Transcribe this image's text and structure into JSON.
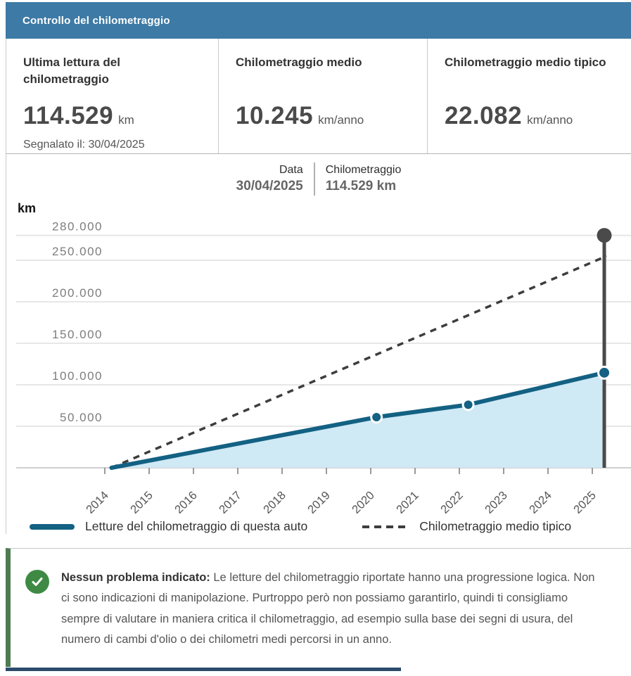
{
  "header": {
    "title": "Controllo del chilometraggio"
  },
  "stats": [
    {
      "title": "Ultima lettura del chilometraggio",
      "value": "114.529",
      "unit": "km",
      "note": "Segnalato il: 30/04/2025"
    },
    {
      "title": "Chilometraggio medio",
      "value": "10.245",
      "unit": "km/anno",
      "note": ""
    },
    {
      "title": "Chilometraggio medio tipico",
      "value": "22.082",
      "unit": "km/anno",
      "note": ""
    }
  ],
  "tooltip": {
    "date_label": "Data",
    "date_value": "30/04/2025",
    "km_label": "Chilometraggio",
    "km_value": "114.529 km"
  },
  "chart_data": {
    "type": "line",
    "title": "",
    "xlabel": "",
    "ylabel": "km",
    "ylim": [
      0,
      280000
    ],
    "grid": true,
    "legend_position": "bottom",
    "x_ticks": [
      2014,
      2015,
      2016,
      2017,
      2018,
      2019,
      2020,
      2021,
      2022,
      2023,
      2024,
      2025
    ],
    "y_ticks": [
      {
        "value": 280000,
        "label": "280.000"
      },
      {
        "value": 250000,
        "label": "250.000"
      },
      {
        "value": 200000,
        "label": "200.000"
      },
      {
        "value": 150000,
        "label": "150.000"
      },
      {
        "value": 100000,
        "label": "100.000"
      },
      {
        "value": 50000,
        "label": "50.000"
      }
    ],
    "series": [
      {
        "name": "Letture del chilometraggio di questa auto",
        "style": "solid",
        "color": "#136183",
        "area_fill": "#cfe9f5",
        "points": [
          {
            "x": 2014.15,
            "y": 0
          },
          {
            "x": 2020.13,
            "y": 61000
          },
          {
            "x": 2022.2,
            "y": 76000
          },
          {
            "x": 2025.27,
            "y": 114529
          }
        ]
      },
      {
        "name": "Chilometraggio medio tipico",
        "style": "dashed",
        "color": "#3d3d3d",
        "points": [
          {
            "x": 2014.15,
            "y": 0
          },
          {
            "x": 2025.32,
            "y": 255000
          }
        ]
      }
    ],
    "marker": {
      "x": 2025.27,
      "top_value": 280000,
      "color": "#4a4a4a",
      "date": "30/04/2025",
      "value": 114529
    }
  },
  "legend": [
    {
      "label": "Letture del chilometraggio di questa auto",
      "style": "solid",
      "color": "#136183"
    },
    {
      "label": "Chilometraggio medio tipico",
      "style": "dashed",
      "color": "#3d3d3d"
    }
  ],
  "info": {
    "title": "Nessun problema indicato:",
    "body": " Le letture del chilometraggio riportate hanno una progressione logica. Non ci sono indicazioni di manipolazione. Purtroppo però non possiamo garantirlo, quindi ti consigliamo sempre di valutare in maniera critica il chilometraggio, ad esempio sulla base dei segni di usura, del numero di cambi d'olio o dei chilometri medi percorsi in un anno."
  },
  "colors": {
    "header_bg": "#3d7aa5",
    "accent": "#136183",
    "area_fill": "#cfe9f5",
    "dashed_line": "#3d3d3d",
    "marker": "#4a4a4a",
    "success": "#3e8a44",
    "info_border": "#4d7c50",
    "footer_bar": "#2c4a6a"
  }
}
